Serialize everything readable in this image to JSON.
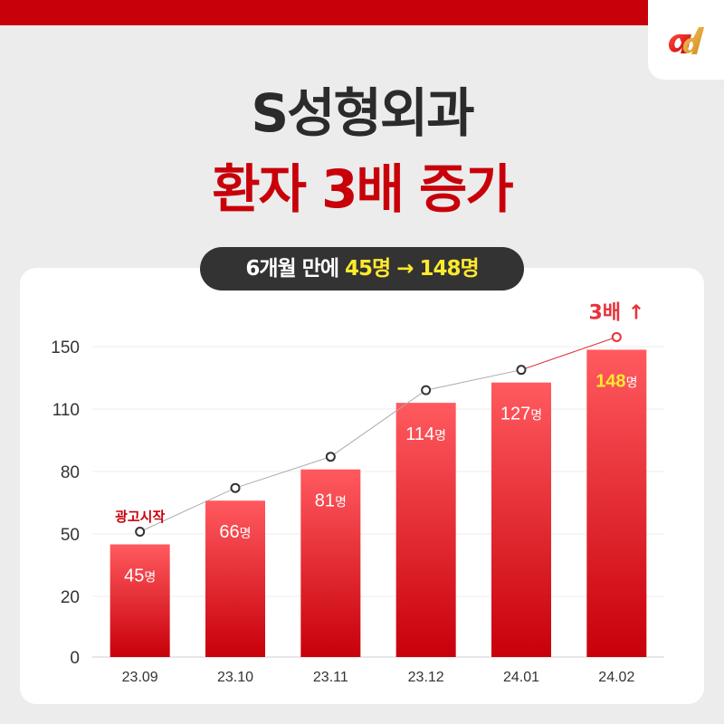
{
  "header": {
    "logo_icon": "ad-logo-icon",
    "accent": "#c8000a"
  },
  "title": "S성형외과",
  "subtitle": "환자 3배 증가",
  "pill": {
    "prefix": "6개월 만에 ",
    "value": "45명 → 148명"
  },
  "chart_data": {
    "type": "bar",
    "categories": [
      "23.09",
      "23.10",
      "23.11",
      "23.12",
      "24.01",
      "24.02"
    ],
    "values": [
      45,
      66,
      81,
      114,
      127,
      148
    ],
    "value_labels": [
      "45",
      "66",
      "81",
      "114",
      "127",
      "148"
    ],
    "value_unit": "명",
    "yticks": [
      "150",
      "110",
      "80",
      "50",
      "20",
      "0"
    ],
    "annotation_start": "광고시작",
    "annotation_end": "3배 ↑",
    "bar_color_top": "#ff5a5f",
    "bar_color_bottom": "#c8000a",
    "highlight_label_color": "#ffea2e",
    "grid": true
  }
}
